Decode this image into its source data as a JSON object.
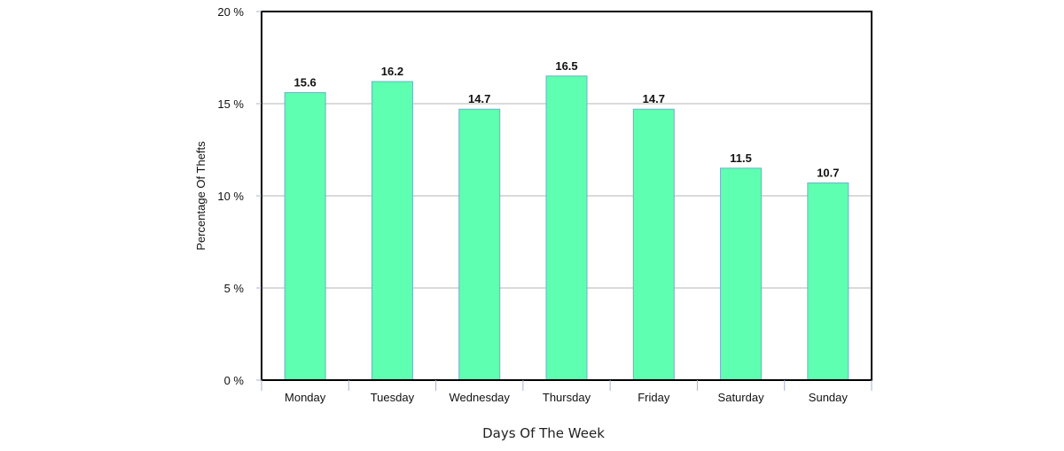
{
  "chart_data": {
    "type": "bar",
    "categories": [
      "Monday",
      "Tuesday",
      "Wednesday",
      "Thursday",
      "Friday",
      "Saturday",
      "Sunday"
    ],
    "values": [
      15.6,
      16.2,
      14.7,
      16.5,
      14.7,
      11.5,
      10.7
    ],
    "value_labels": [
      "15.6",
      "16.2",
      "14.7",
      "16.5",
      "14.7",
      "11.5",
      "10.7"
    ],
    "title": "",
    "xlabel": "Days Of The Week",
    "ylabel": "Percentage Of Thefts",
    "ylim": [
      0,
      20
    ],
    "yticks": [
      0,
      5,
      10,
      15,
      20
    ],
    "ytick_labels": [
      "0 %",
      "5 %",
      "10 %",
      "15 %",
      "20 %"
    ],
    "grid": true,
    "legend": "none",
    "colors": {
      "bar_fill": "#5effb0",
      "bar_stroke": "#6fb0c8",
      "gridline": "#b4b4b4",
      "frame": "#000000",
      "tick": "#a9b4d6"
    }
  }
}
